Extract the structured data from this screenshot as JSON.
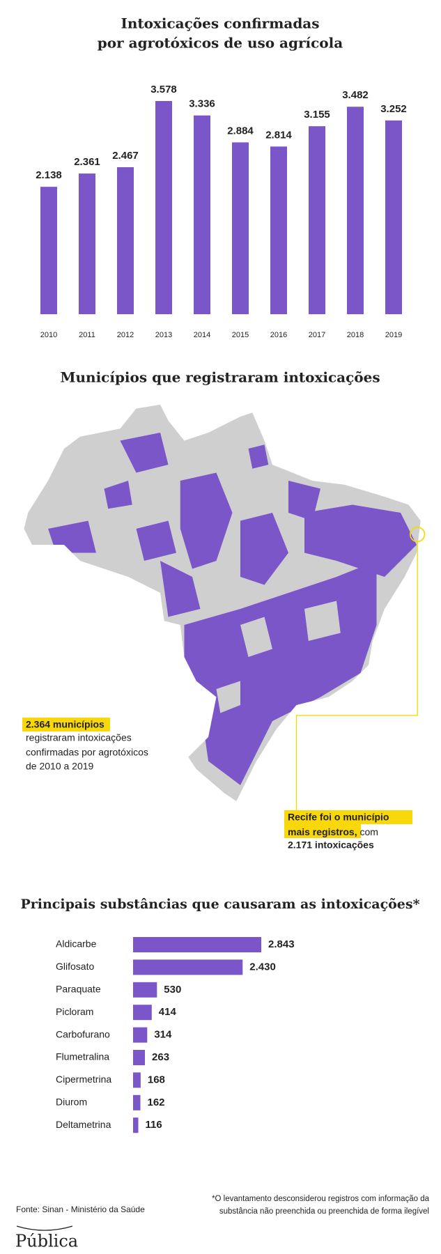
{
  "chart_data": [
    {
      "type": "bar",
      "title_lines": [
        "Intoxicações confirmadas",
        "por agrotóxicos de uso agrícola"
      ],
      "categories": [
        "2010",
        "2011",
        "2012",
        "2013",
        "2014",
        "2015",
        "2016",
        "2017",
        "2018",
        "2019"
      ],
      "values": [
        2138,
        2361,
        2467,
        3578,
        3336,
        2884,
        2814,
        3155,
        3482,
        3252
      ],
      "value_labels": [
        "2.138",
        "2.361",
        "2.467",
        "3.578",
        "3.336",
        "2.884",
        "2.814",
        "3.155",
        "3.482",
        "3.252"
      ],
      "color": "#7b56c9"
    },
    {
      "type": "hbar",
      "title": "Principais substâncias que causaram as intoxicações*",
      "categories": [
        "Aldicarbe",
        "Glifosato",
        "Paraquate",
        "Picloram",
        "Carbofurano",
        "Flumetralina",
        "Cipermetrina",
        "Diurom",
        "Deltametrina"
      ],
      "values": [
        2843,
        2430,
        530,
        414,
        314,
        263,
        168,
        162,
        116
      ],
      "value_labels": [
        "2.843",
        "2.430",
        "530",
        "414",
        "314",
        "263",
        "168",
        "162",
        "116"
      ],
      "color": "#7b56c9"
    }
  ],
  "map": {
    "title": "Municípios que registraram intoxicações",
    "note_highlight": "2.364 municípios",
    "note_lines": [
      "registraram intoxicações",
      "confirmadas por agrotóxicos",
      "de 2010 a 2019"
    ],
    "recife_highlight_lines": [
      "Recife foi o município",
      "mais registros,"
    ],
    "recife_rest": "com",
    "recife_count": "2.171 intoxicações"
  },
  "footer": {
    "source": "Fonte: Sinan - Ministério da Saúde",
    "footnote_lines": [
      "*O levantamento desconsiderou registros com informação da",
      "substância não preenchida ou preenchida de forma ilegível"
    ],
    "logo": "Pública"
  }
}
